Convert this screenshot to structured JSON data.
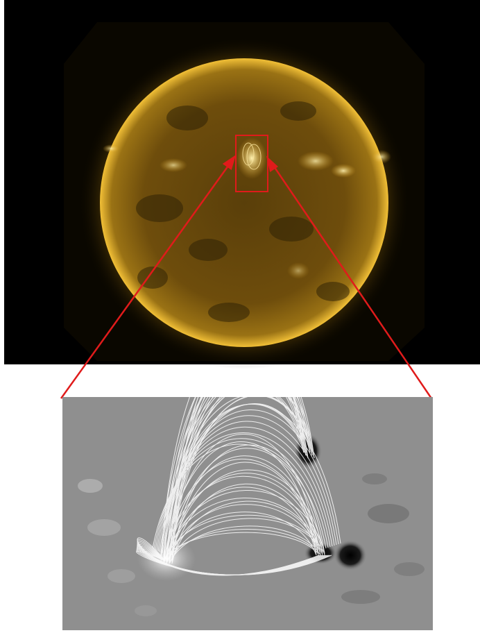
{
  "solar_disk_panel": {
    "image": "full-disk-sun-euv",
    "background_color": "#000000",
    "disk_color": "#c89a1e",
    "limb_color": "#f2c037"
  },
  "active_region_box": {
    "color": "#e01b1b"
  },
  "zoom_connectors": {
    "color": "#e01b1b"
  },
  "magnetogram_panel": {
    "image": "magnetogram-with-field-lines",
    "background_color": "#8f8f8f",
    "field_line_color": "#ffffff",
    "negative_polarity_color": "#111111",
    "positive_polarity_color": "#f4f4f4"
  }
}
